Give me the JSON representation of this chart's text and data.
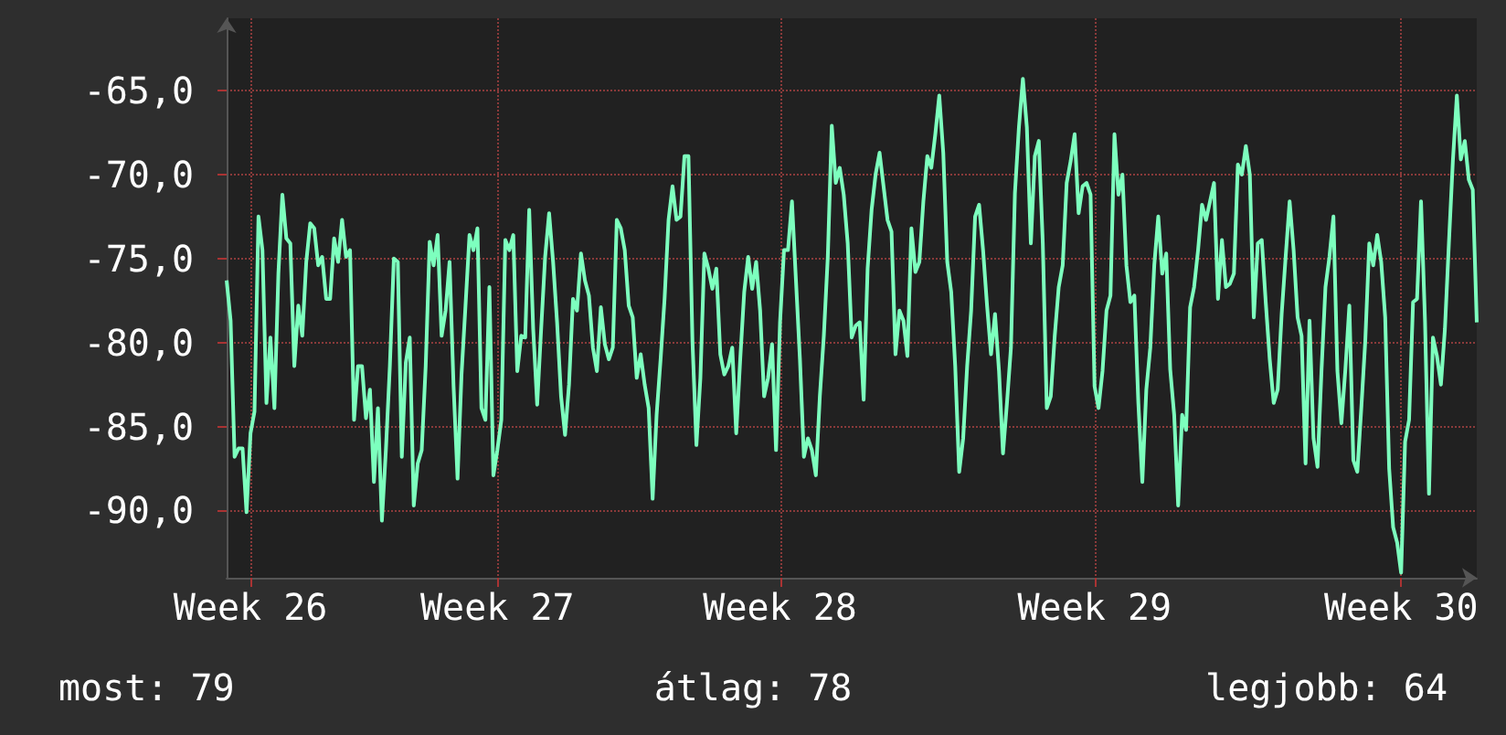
{
  "chart_data": {
    "type": "line",
    "color": "#7dffbe",
    "categories": [
      null,
      null,
      null,
      null,
      null,
      null,
      "Week 26",
      null,
      null,
      null,
      null,
      null,
      null,
      null,
      null,
      null,
      null,
      null,
      null,
      null,
      null,
      null,
      null,
      null,
      null,
      null,
      null,
      null,
      null,
      null,
      null,
      null,
      null,
      null,
      null,
      null,
      null,
      null,
      null,
      null,
      null,
      null,
      null,
      null,
      null,
      null,
      null,
      null,
      null,
      null,
      null,
      null,
      null,
      null,
      null,
      null,
      null,
      null,
      null,
      null,
      null,
      null,
      null,
      null,
      null,
      null,
      null,
      null,
      "Week 27",
      null,
      null,
      null,
      null,
      null,
      null,
      null,
      null,
      null,
      null,
      null,
      null,
      null,
      null,
      null,
      null,
      null,
      null,
      null,
      null,
      null,
      null,
      null,
      null,
      null,
      null,
      null,
      null,
      null,
      null,
      null,
      null,
      null,
      null,
      null,
      null,
      null,
      null,
      null,
      null,
      null,
      null,
      null,
      null,
      null,
      null,
      null,
      null,
      null,
      null,
      null,
      null,
      null,
      null,
      null,
      null,
      null,
      null,
      null,
      null,
      null,
      null,
      null,
      null,
      null,
      null,
      null,
      null,
      null,
      null,
      "Week 28",
      null,
      null,
      null,
      null,
      null,
      null,
      null,
      null,
      null,
      null,
      null,
      null,
      null,
      null,
      null,
      null,
      null,
      null,
      null,
      null,
      null,
      null,
      null,
      null,
      null,
      null,
      null,
      null,
      null,
      null,
      null,
      null,
      null,
      null,
      null,
      null,
      null,
      null,
      null,
      null,
      null,
      null,
      null,
      null,
      null,
      null,
      null,
      null,
      null,
      null,
      null,
      null,
      null,
      null,
      null,
      null,
      null,
      null,
      null,
      null,
      null,
      null,
      null,
      null,
      null,
      null,
      null,
      null,
      null,
      null,
      null,
      null,
      null,
      null,
      null,
      null,
      null,
      null,
      "Week 29",
      null,
      null,
      null,
      null,
      null,
      null,
      null,
      null,
      null,
      null,
      null,
      null,
      null,
      null,
      null,
      null,
      null,
      null,
      null,
      null,
      null,
      null,
      null,
      null,
      null,
      null,
      null,
      null,
      null,
      null,
      null,
      null,
      null,
      null,
      null,
      null,
      null,
      null,
      null,
      null,
      null,
      null,
      null,
      null,
      null,
      null,
      null,
      null,
      null,
      null,
      null,
      null,
      null,
      null,
      null,
      null,
      null,
      null,
      null,
      null,
      null,
      null,
      null,
      null,
      null,
      null,
      null,
      null,
      null,
      null,
      null,
      null,
      null,
      null,
      null,
      null,
      "Week 30",
      null,
      null,
      null,
      null,
      null,
      null,
      null,
      null,
      null,
      null,
      null,
      null,
      null,
      null,
      null,
      null,
      null,
      null,
      null
    ],
    "values": [
      -76.3,
      -78.7,
      -86.8,
      -86.3,
      -86.3,
      -90.1,
      -85.4,
      -84.1,
      -72.5,
      -74.5,
      -83.6,
      -79.7,
      -83.9,
      -75.9,
      -71.2,
      -73.8,
      -74.1,
      -81.4,
      -77.8,
      -79.6,
      -75.2,
      -72.9,
      -73.2,
      -75.4,
      -74.9,
      -77.4,
      -77.4,
      -73.8,
      -75.2,
      -72.7,
      -74.9,
      -74.5,
      -84.6,
      -81.4,
      -81.4,
      -84.5,
      -82.8,
      -88.3,
      -83.9,
      -90.6,
      -86.4,
      -81.4,
      -75.0,
      -75.2,
      -86.8,
      -81.2,
      -79.7,
      -89.7,
      -87.2,
      -86.4,
      -81.4,
      -74.0,
      -75.4,
      -73.6,
      -79.6,
      -78.1,
      -75.2,
      -82.6,
      -88.1,
      -81.9,
      -77.8,
      -73.6,
      -74.5,
      -73.2,
      -83.9,
      -84.6,
      -76.7,
      -87.9,
      -86.4,
      -84.6,
      -73.9,
      -74.5,
      -73.6,
      -81.7,
      -79.6,
      -79.7,
      -72.1,
      -79.2,
      -83.7,
      -79.2,
      -74.9,
      -72.3,
      -75.2,
      -78.8,
      -83.2,
      -85.5,
      -82.5,
      -77.4,
      -78.1,
      -74.7,
      -76.3,
      -77.2,
      -80.3,
      -81.7,
      -77.9,
      -80.1,
      -81.0,
      -80.3,
      -72.7,
      -73.2,
      -74.5,
      -77.8,
      -78.5,
      -82.1,
      -80.7,
      -82.5,
      -83.9,
      -89.3,
      -84.3,
      -81.0,
      -77.4,
      -72.7,
      -70.7,
      -72.7,
      -72.5,
      -68.9,
      -68.9,
      -79.9,
      -86.1,
      -82.1,
      -74.7,
      -75.6,
      -76.8,
      -75.6,
      -80.7,
      -81.9,
      -81.4,
      -80.3,
      -85.4,
      -81.0,
      -77.0,
      -74.9,
      -76.8,
      -75.2,
      -78.1,
      -83.2,
      -82.1,
      -80.1,
      -86.4,
      -78.8,
      -74.5,
      -74.5,
      -71.6,
      -76.3,
      -81.0,
      -86.8,
      -85.7,
      -86.4,
      -87.9,
      -83.2,
      -79.6,
      -74.9,
      -67.1,
      -70.5,
      -69.6,
      -71.2,
      -74.1,
      -79.7,
      -79.0,
      -78.8,
      -83.4,
      -75.6,
      -72.1,
      -70.0,
      -68.7,
      -70.7,
      -72.7,
      -73.4,
      -80.7,
      -78.1,
      -78.7,
      -80.8,
      -73.2,
      -75.8,
      -75.2,
      -71.6,
      -68.9,
      -69.6,
      -67.6,
      -65.3,
      -68.7,
      -75.2,
      -77.0,
      -81.4,
      -87.7,
      -85.7,
      -81.4,
      -78.1,
      -72.5,
      -71.8,
      -74.5,
      -77.8,
      -80.7,
      -78.3,
      -81.7,
      -86.6,
      -83.6,
      -80.3,
      -71.1,
      -67.2,
      -64.3,
      -67.2,
      -74.1,
      -68.9,
      -68.0,
      -74.1,
      -83.9,
      -83.2,
      -79.6,
      -76.7,
      -75.4,
      -70.5,
      -69.2,
      -67.6,
      -72.3,
      -70.7,
      -70.5,
      -71.2,
      -82.6,
      -83.9,
      -81.7,
      -78.1,
      -77.2,
      -67.6,
      -71.2,
      -70.0,
      -75.4,
      -77.6,
      -77.2,
      -83.6,
      -88.3,
      -82.8,
      -80.3,
      -75.4,
      -72.5,
      -75.9,
      -74.7,
      -81.6,
      -84.3,
      -89.7,
      -84.3,
      -85.2,
      -77.9,
      -76.7,
      -74.5,
      -71.8,
      -72.7,
      -71.6,
      -70.5,
      -77.4,
      -73.9,
      -76.7,
      -76.5,
      -75.9,
      -69.4,
      -70.0,
      -68.3,
      -70.0,
      -78.5,
      -74.1,
      -73.9,
      -77.6,
      -81.0,
      -83.6,
      -82.8,
      -78.3,
      -74.9,
      -71.6,
      -74.5,
      -78.5,
      -79.6,
      -87.2,
      -78.7,
      -85.7,
      -87.4,
      -81.7,
      -76.7,
      -74.9,
      -72.5,
      -81.7,
      -84.8,
      -81.6,
      -77.8,
      -87.0,
      -87.7,
      -83.9,
      -79.9,
      -74.1,
      -75.4,
      -73.6,
      -75.2,
      -78.5,
      -87.5,
      -91.0,
      -91.9,
      -93.7,
      -85.9,
      -84.6,
      -77.6,
      -77.4,
      -71.6,
      -78.7,
      -89.0,
      -79.7,
      -80.8,
      -82.5,
      -79.2,
      -74.1,
      -69.2,
      -65.3,
      -69.1,
      -68.0,
      -70.3,
      -70.9,
      -78.8
    ],
    "ylim": [
      -94,
      -60.7
    ],
    "yticks": [
      {
        "value": -90,
        "label": "-90,0"
      },
      {
        "value": -85,
        "label": "-85,0"
      },
      {
        "value": -80,
        "label": "-80,0"
      },
      {
        "value": -75,
        "label": "-75,0"
      },
      {
        "value": -70,
        "label": "-70,0"
      },
      {
        "value": -65,
        "label": "-65,0"
      }
    ],
    "grid": true,
    "marker": "none",
    "line_style": "solid",
    "annotations": [
      "most: 79",
      "átlag: 78",
      "legjobb: 64"
    ]
  }
}
